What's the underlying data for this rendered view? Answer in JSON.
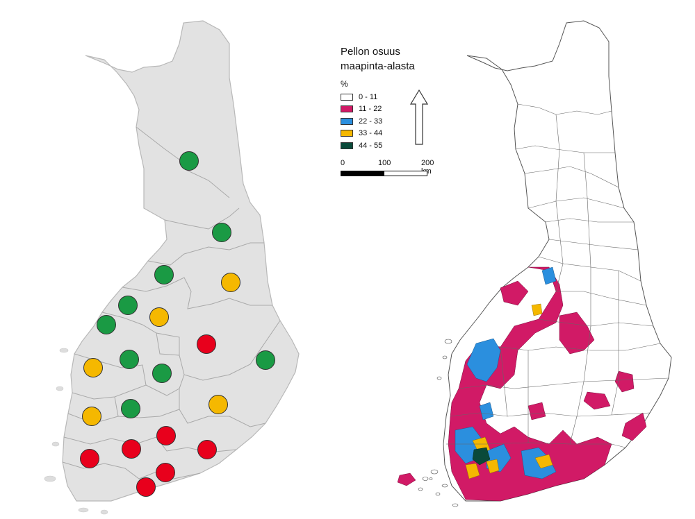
{
  "legend": {
    "title_line1": "Pellon osuus",
    "title_line2": "maapinta-alasta",
    "unit": "%",
    "classes": [
      {
        "label": "0 - 11",
        "color": "#ffffff"
      },
      {
        "label": "11 - 22",
        "color": "#d11a66"
      },
      {
        "label": "22 - 33",
        "color": "#2b8fde"
      },
      {
        "label": "33 - 44",
        "color": "#f5b800"
      },
      {
        "label": "44 - 55",
        "color": "#0a4a3a"
      }
    ]
  },
  "scale_bar": {
    "labels": [
      "0",
      "100",
      "200 km"
    ]
  },
  "north_arrow": {
    "icon": "north-arrow-icon"
  },
  "region_markers": {
    "colors": {
      "green": "#1a9a44",
      "yellow": "#f5b800",
      "red": "#e8001c"
    },
    "markers": [
      "green",
      "green",
      "green",
      "yellow",
      "green",
      "yellow",
      "green",
      "red",
      "green",
      "yellow",
      "green",
      "green",
      "green",
      "yellow",
      "yellow",
      "red",
      "red",
      "red",
      "red",
      "red",
      "red",
      "red"
    ]
  }
}
